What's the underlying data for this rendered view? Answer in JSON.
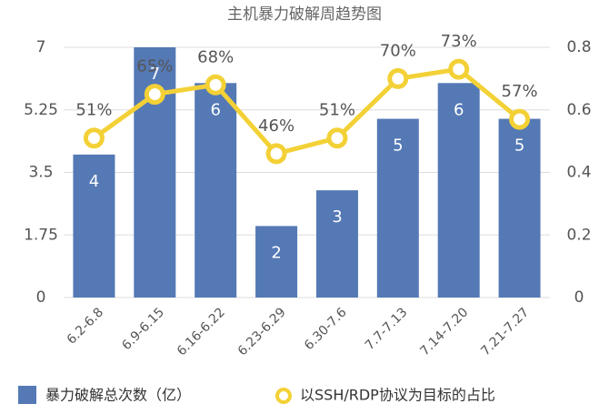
{
  "chart_data": {
    "type": "bar",
    "title": "主机暴力破解周趋势图",
    "categories": [
      "6.2-6.8",
      "6.9-6.15",
      "6.16-6.22",
      "6.23-6.29",
      "6.30-7.6",
      "7.7-7.13",
      "7.14-7.20",
      "7.21-7.27"
    ],
    "series": [
      {
        "name": "暴力破解总次数（亿）",
        "type": "bar",
        "color": "#5479b5",
        "values": [
          4,
          7,
          6,
          2,
          3,
          5,
          6,
          5
        ]
      },
      {
        "name": "以SSH/RDP协议为目标的占比",
        "type": "line",
        "axis": "y2",
        "color": "#f3d136",
        "values": [
          0.51,
          0.65,
          0.68,
          0.46,
          0.51,
          0.7,
          0.73,
          0.57
        ],
        "value_labels": [
          "51%",
          "65%",
          "68%",
          "46%",
          "51%",
          "70%",
          "73%",
          "57%"
        ]
      }
    ],
    "ylim": [
      0,
      7
    ],
    "yticks": [
      0,
      1.75,
      3.5,
      5.25,
      7
    ],
    "y2lim": [
      0,
      0.8
    ],
    "y2ticks": [
      0,
      0.2,
      0.4,
      0.6,
      0.8
    ],
    "grid": true
  }
}
